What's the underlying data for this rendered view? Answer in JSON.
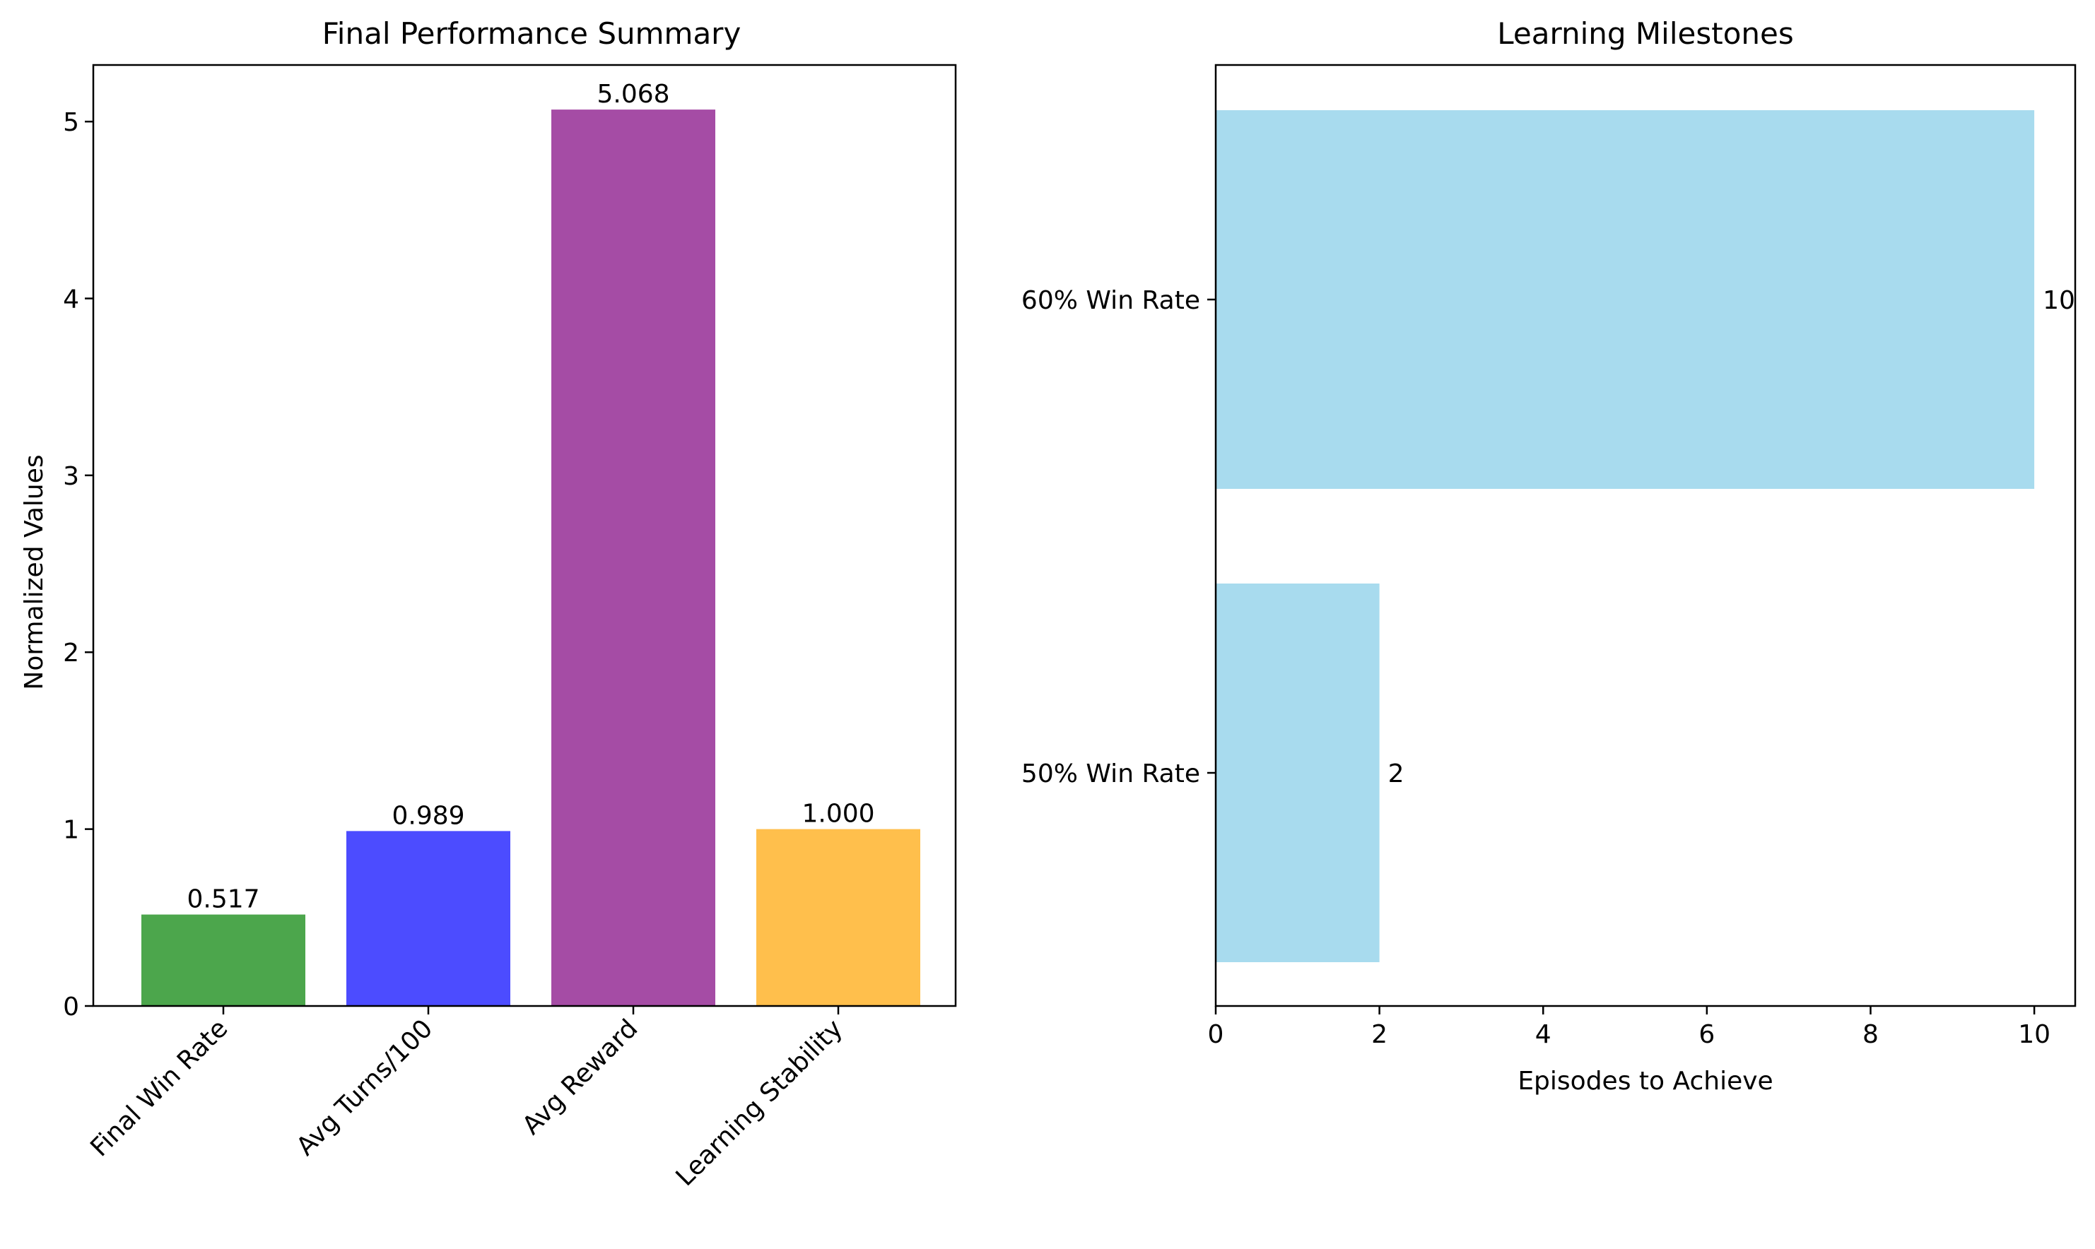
{
  "chart_data": [
    {
      "type": "bar",
      "title": "Final Performance Summary",
      "xlabel": "",
      "ylabel": "Normalized Values",
      "categories": [
        "Final Win Rate",
        "Avg Turns/100",
        "Avg Reward",
        "Learning Stability"
      ],
      "values": [
        0.517,
        0.989,
        5.068,
        1.0
      ],
      "value_labels": [
        "0.517",
        "0.989",
        "5.068",
        "1.000"
      ],
      "colors": [
        "#4ca64c",
        "#4c4cff",
        "#a54ca5",
        "#ffbf4c"
      ],
      "ylim": [
        0,
        5.32
      ],
      "yticks": [
        0,
        1,
        2,
        3,
        4,
        5
      ],
      "grid": false
    },
    {
      "type": "bar",
      "orientation": "horizontal",
      "title": "Learning Milestones",
      "xlabel": "Episodes to Achieve",
      "ylabel": "",
      "categories": [
        "50% Win Rate",
        "60% Win Rate"
      ],
      "values": [
        2,
        10
      ],
      "value_labels": [
        "2",
        "10"
      ],
      "colors": [
        "#a8dbee",
        "#a8dbee"
      ],
      "xlim": [
        0,
        10.5
      ],
      "xticks": [
        0,
        2,
        4,
        6,
        8,
        10
      ],
      "grid": false
    }
  ]
}
